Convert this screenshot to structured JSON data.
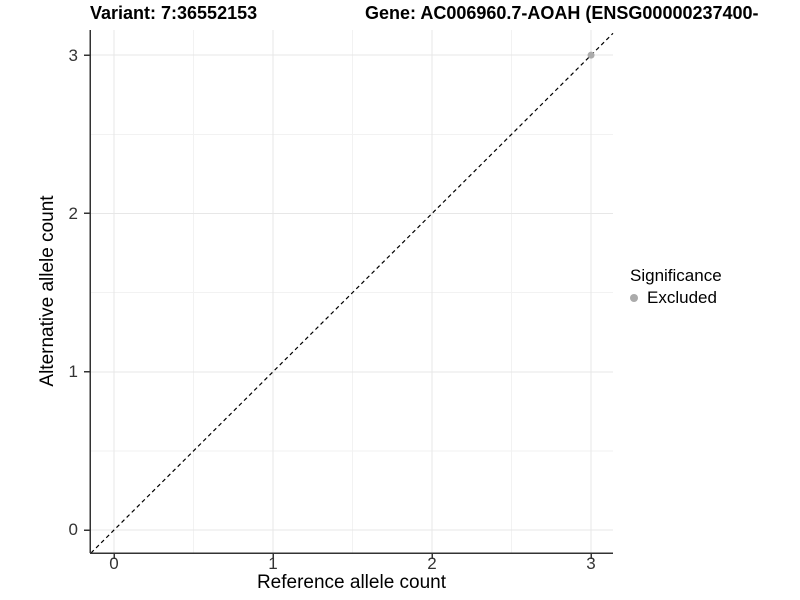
{
  "chart_data": {
    "type": "scatter",
    "title_variant": "Variant: 7:36552153",
    "title_gene": "Gene: AC006960.7-AOAH (ENSG00000237400-",
    "xlabel": "Reference allele count",
    "ylabel": "Alternative allele count",
    "xticks": [
      0,
      1,
      2,
      3
    ],
    "yticks": [
      0,
      1,
      2,
      3
    ],
    "minor_ticks": [
      0.5,
      1.5,
      2.5
    ],
    "xlim": [
      -0.151,
      3.138
    ],
    "ylim": [
      -0.145,
      3.159
    ],
    "grid": "major and minor, light gray on white",
    "points": [
      {
        "x": 3,
        "y": 3,
        "significance": "Excluded"
      }
    ],
    "identity_line": {
      "type": "abline y=x",
      "style": "dashed",
      "color": "#000000"
    },
    "legend": {
      "title": "Significance",
      "position": "right",
      "entries": [
        {
          "label": "Excluded",
          "color": "#ababab"
        }
      ]
    },
    "colors": {
      "point_excluded": "#ababab",
      "axis_line": "#333333",
      "tick_mark": "#333333",
      "grid_major": "#e7e7e7",
      "grid_minor": "#f2f2f2",
      "dashed_line": "#000000",
      "background": "#ffffff"
    }
  }
}
